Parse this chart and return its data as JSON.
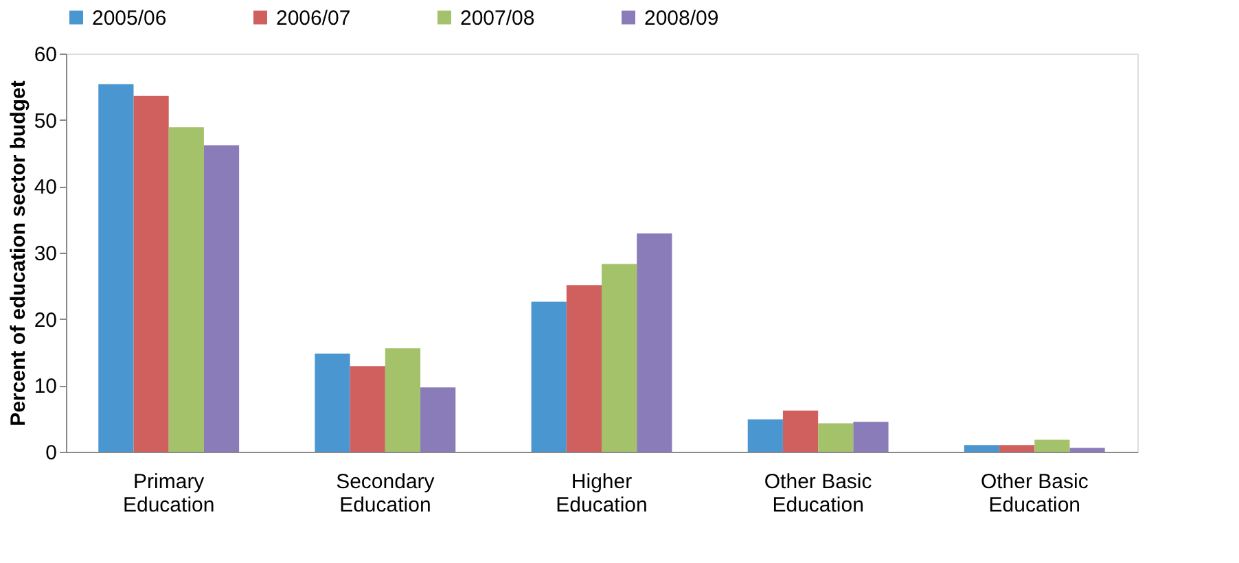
{
  "chart_data": {
    "type": "bar",
    "ylabel": "Percent of education sector budget",
    "categories": [
      "Primary Education",
      "Secondary Education",
      "Higher Education",
      "Other Basic Education",
      "Other Basic Education"
    ],
    "series": [
      {
        "name": "2005/06",
        "color": "#4a96d0",
        "values": [
          55.4,
          14.8,
          22.6,
          4.9,
          1.0
        ]
      },
      {
        "name": "2006/07",
        "color": "#d0605e",
        "values": [
          53.6,
          12.9,
          25.1,
          6.2,
          1.0
        ]
      },
      {
        "name": "2007/08",
        "color": "#a4c26a",
        "values": [
          48.9,
          15.6,
          28.3,
          4.3,
          1.8
        ]
      },
      {
        "name": "2008/09",
        "color": "#8a7cb8",
        "values": [
          46.2,
          9.7,
          32.9,
          4.5,
          0.6
        ]
      }
    ],
    "ylim": [
      0,
      60
    ],
    "yticks": [
      0,
      10,
      20,
      30,
      40,
      50,
      60
    ],
    "grid": false,
    "legend": "top"
  }
}
